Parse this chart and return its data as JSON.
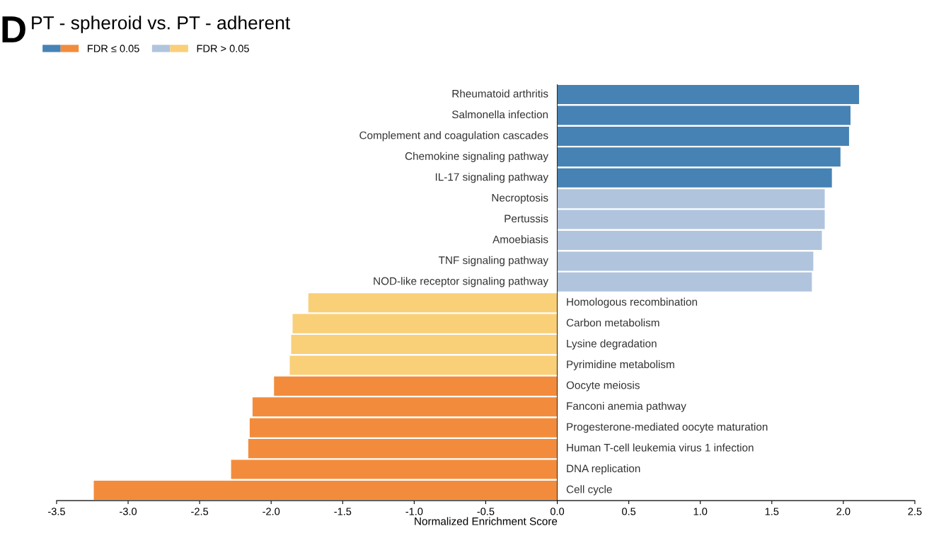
{
  "chart_data": {
    "type": "bar",
    "orientation": "horizontal",
    "title": "PT - spheroid vs. PT - adherent",
    "xlabel": "Normalized Enrichment Score",
    "annotations": [
      "D"
    ],
    "categories": [
      "Rheumatoid arthritis",
      "Salmonella infection",
      "Complement and coagulation cascades",
      "Chemokine signaling pathway",
      "IL-17 signaling pathway",
      "Necroptosis",
      "Pertussis",
      "Amoebiasis",
      "TNF signaling pathway",
      "NOD-like receptor signaling pathway",
      "Homologous recombination",
      "Carbon metabolism",
      "Lysine degradation",
      "Pyrimidine metabolism",
      "Oocyte meiosis",
      "Fanconi anemia pathway",
      "Progesterone-mediated oocyte maturation",
      "Human T-cell leukemia virus 1 infection",
      "DNA replication",
      "Cell cycle"
    ],
    "series": [
      {
        "name": "FDR ≤ 0.05",
        "colors": [
          "#4682b4",
          "#4682b4",
          "#4682b4",
          "#4682b4",
          "#4682b4",
          null,
          null,
          null,
          null,
          null,
          null,
          null,
          null,
          null,
          "#f28c3c",
          "#f28c3c",
          "#f28c3c",
          "#f28c3c",
          "#f28c3c",
          "#f28c3c"
        ],
        "values": [
          2.11,
          2.05,
          2.04,
          1.98,
          1.92,
          null,
          null,
          null,
          null,
          null,
          null,
          null,
          null,
          null,
          -1.98,
          -2.13,
          -2.15,
          -2.16,
          -2.28,
          -3.24
        ]
      },
      {
        "name": "FDR > 0.05",
        "colors": [
          null,
          null,
          null,
          null,
          null,
          "#b0c4de",
          "#b0c4de",
          "#b0c4de",
          "#b0c4de",
          "#b0c4de",
          "#f9cf78",
          "#f9cf78",
          "#f9cf78",
          "#f9cf78",
          null,
          null,
          null,
          null,
          null,
          null
        ],
        "values": [
          null,
          null,
          null,
          null,
          null,
          1.87,
          1.87,
          1.85,
          1.79,
          1.78,
          -1.74,
          -1.85,
          -1.86,
          -1.87,
          null,
          null,
          null,
          null,
          null,
          null
        ]
      }
    ],
    "xlim": [
      -3.5,
      2.5
    ],
    "xticks": [
      {
        "value": -3.5,
        "label": "-3.5"
      },
      {
        "value": -3,
        "label": "-3.0"
      },
      {
        "value": -2.5,
        "label": "-2.5"
      },
      {
        "value": -2,
        "label": "-2.0"
      },
      {
        "value": -1.5,
        "label": "-1.5"
      },
      {
        "value": -1,
        "label": "-1.0"
      },
      {
        "value": -0.5,
        "label": "-0.5"
      },
      {
        "value": 0,
        "label": "0.0"
      },
      {
        "value": 0.5,
        "label": "0.5"
      },
      {
        "value": 1,
        "label": "1.0"
      },
      {
        "value": 1.5,
        "label": "1.5"
      },
      {
        "value": 2,
        "label": "2.0"
      },
      {
        "value": 2.5,
        "label": "2.5"
      }
    ],
    "grid": false,
    "legend": "top left"
  }
}
